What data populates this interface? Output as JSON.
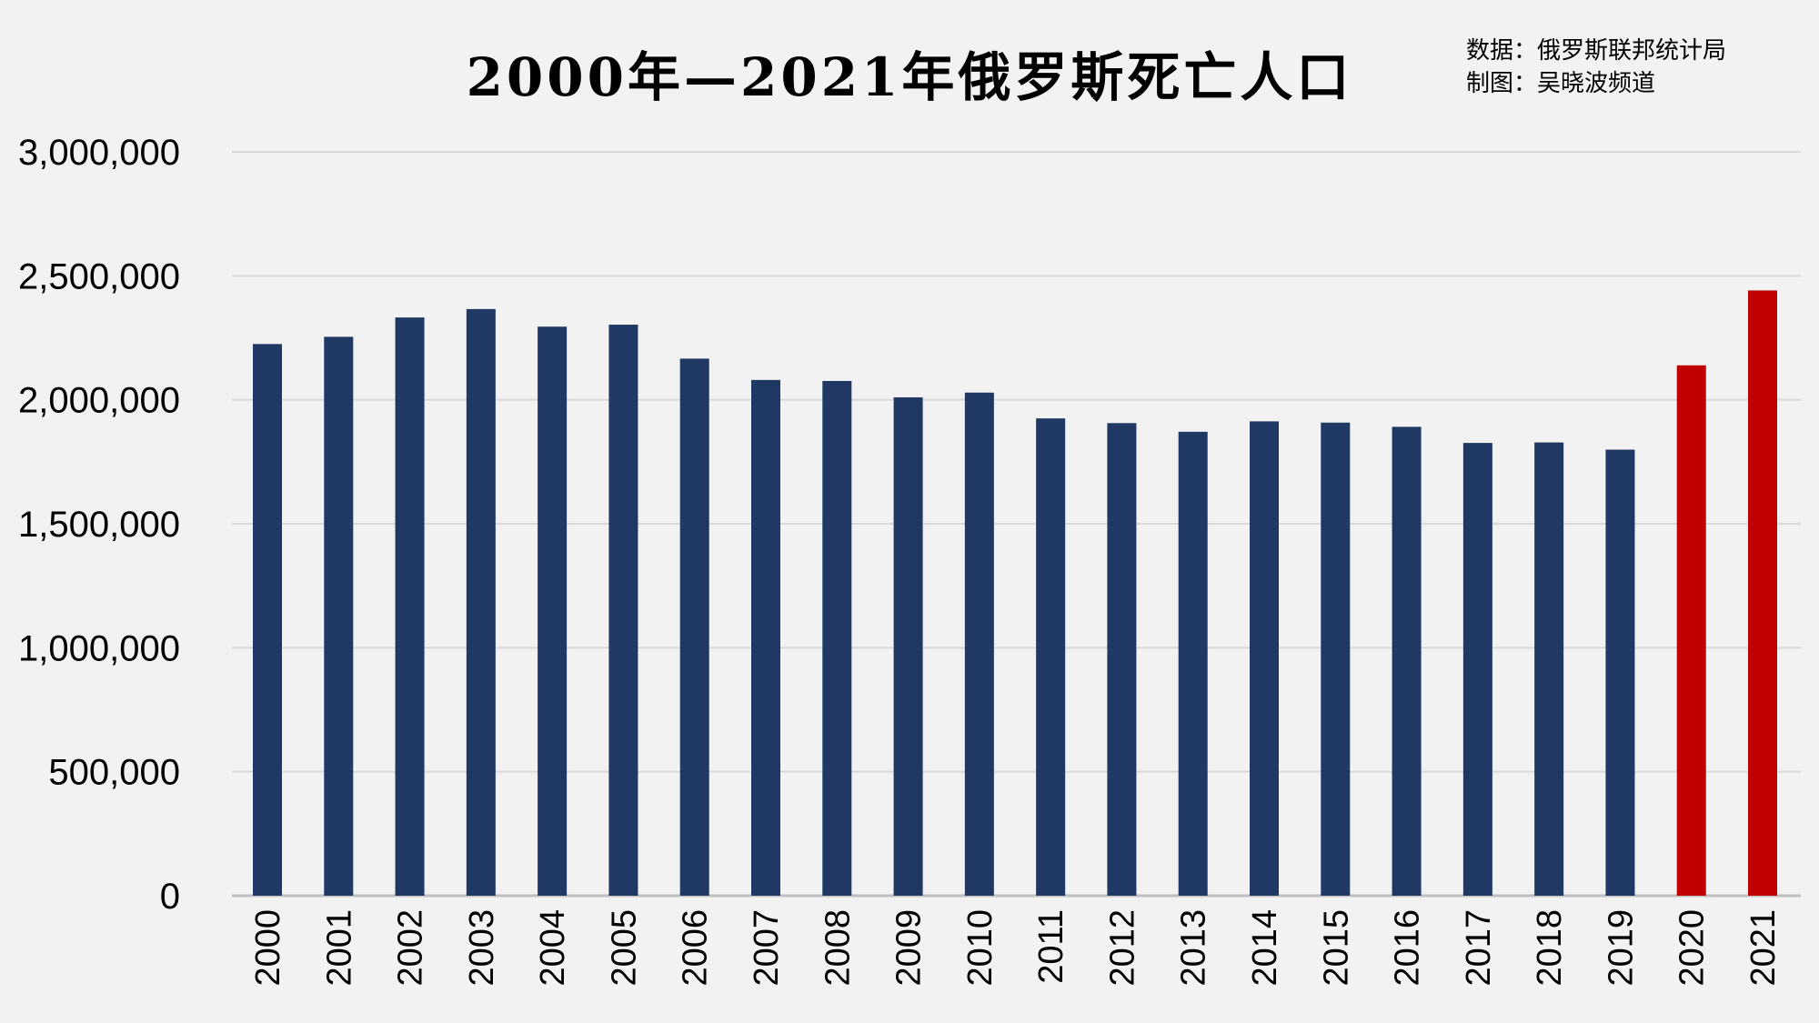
{
  "chart_data": {
    "type": "bar",
    "title": "2000年—2021年俄罗斯死亡人口",
    "source_line": "数据：俄罗斯联邦统计局",
    "author_line": "制图：吴晓波频道",
    "xlabel": "",
    "ylabel": "",
    "ylim": [
      0,
      3000000
    ],
    "yticks": [
      0,
      500000,
      1000000,
      1500000,
      2000000,
      2500000,
      3000000
    ],
    "ytick_labels": [
      "0",
      "500,000",
      "1,000,000",
      "1,500,000",
      "2,000,000",
      "2,500,000",
      "3,000,000"
    ],
    "grid": true,
    "categories": [
      "2000",
      "2001",
      "2002",
      "2003",
      "2004",
      "2005",
      "2006",
      "2007",
      "2008",
      "2009",
      "2010",
      "2011",
      "2012",
      "2013",
      "2014",
      "2015",
      "2016",
      "2017",
      "2018",
      "2019",
      "2020",
      "2021"
    ],
    "values": [
      2225000,
      2254000,
      2332000,
      2366000,
      2295000,
      2303000,
      2166000,
      2080000,
      2076000,
      2010000,
      2029000,
      1925000,
      1906000,
      1871000,
      1913000,
      1908000,
      1891000,
      1826000,
      1828000,
      1799000,
      2139000,
      2441000
    ],
    "colors": {
      "default": "#1f3864",
      "highlight": "#c00000",
      "highlight_categories": [
        "2020",
        "2021"
      ],
      "grid": "#d9d9d9",
      "background": "#f2f2f2"
    }
  }
}
